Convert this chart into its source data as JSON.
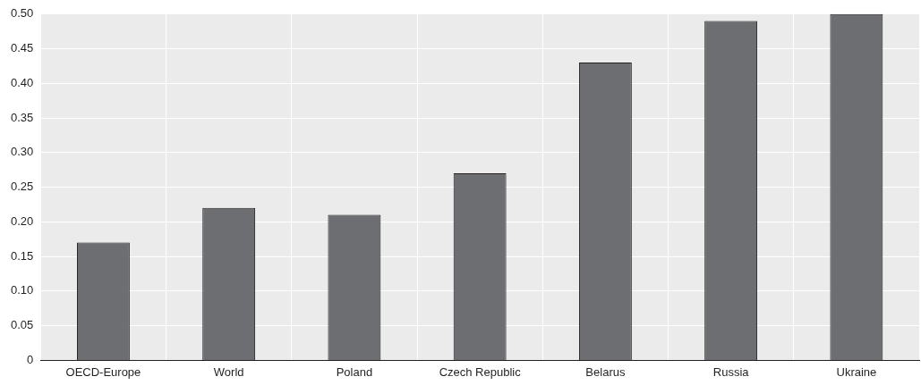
{
  "chart_data": {
    "type": "bar",
    "categories": [
      "OECD-Europe",
      "World",
      "Poland",
      "Czech Republic",
      "Belarus",
      "Russia",
      "Ukraine"
    ],
    "values": [
      0.17,
      0.22,
      0.21,
      0.27,
      0.43,
      0.49,
      0.5
    ],
    "color": "#6d6e71",
    "ylim": [
      0,
      0.5
    ],
    "yticks": [
      {
        "value": 0,
        "label": "0"
      },
      {
        "value": 0.05,
        "label": "0.05"
      },
      {
        "value": 0.1,
        "label": "0.10"
      },
      {
        "value": 0.15,
        "label": "0.15"
      },
      {
        "value": 0.2,
        "label": "0.20"
      },
      {
        "value": 0.25,
        "label": "0.25"
      },
      {
        "value": 0.3,
        "label": "0.30"
      },
      {
        "value": 0.35,
        "label": "0.35"
      },
      {
        "value": 0.4,
        "label": "0.40"
      },
      {
        "value": 0.45,
        "label": "0.45"
      },
      {
        "value": 0.5,
        "label": "0.50"
      }
    ],
    "grid": true,
    "legend": false
  }
}
